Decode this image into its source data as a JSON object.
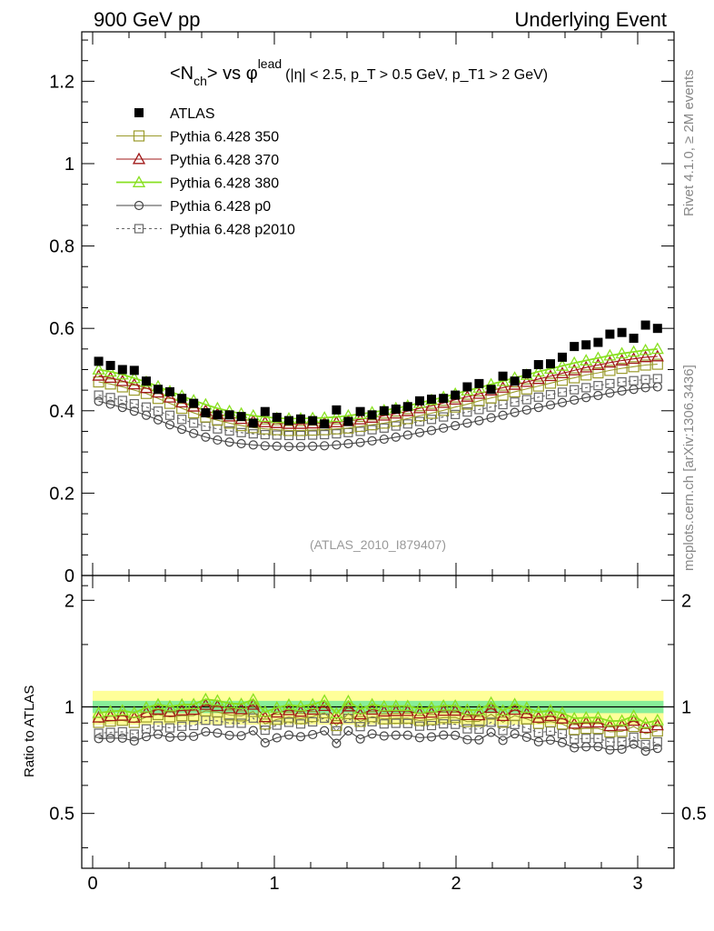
{
  "header": {
    "left": "900 GeV pp",
    "right": "Underlying Event"
  },
  "title": {
    "main_prefix": "<N",
    "main_sub": "ch",
    "main_suffix": "> vs φ",
    "main_sup": "lead",
    "cuts": "(|η| < 2.5, p_T > 0.5 GeV, p_T1 > 2 GeV)"
  },
  "side_labels": {
    "rivet": "Rivet 4.1.0, ≥ 2M events",
    "mcplots": "mcplots.cern.ch [arXiv:1306.3436]"
  },
  "analysis_id": "(ATLAS_2010_I879407)",
  "ratio_ylabel": "Ratio to ATLAS",
  "colors": {
    "atlas": "#000000",
    "p350": "#9a9a2a",
    "p370": "#a01818",
    "p380": "#88e020",
    "p0": "#444444",
    "p2010": "#666666",
    "band_yellow": "#ffff99",
    "band_green": "#88ee99"
  },
  "chart_data": {
    "type": "scatter",
    "xlabel": "",
    "ylabel": "",
    "xlim": [
      -0.06,
      3.2
    ],
    "ylim": [
      0,
      1.32
    ],
    "ratio_ylim": [
      0.35,
      2.35
    ],
    "main_yticks": [
      0,
      0.2,
      0.4,
      0.6,
      0.8,
      1,
      1.2
    ],
    "xticks": [
      0,
      1,
      2,
      3
    ],
    "ratio_yticks": [
      0.5,
      1,
      2
    ],
    "legend": {
      "position": "top-left",
      "entries": [
        "ATLAS",
        "Pythia 6.428 350",
        "Pythia 6.428 370",
        "Pythia 6.428 380",
        "Pythia 6.428 p0",
        "Pythia 6.428 p2010"
      ]
    },
    "x": [
      0.033,
      0.098,
      0.164,
      0.229,
      0.295,
      0.36,
      0.425,
      0.491,
      0.556,
      0.622,
      0.687,
      0.753,
      0.818,
      0.884,
      0.949,
      1.014,
      1.08,
      1.145,
      1.211,
      1.276,
      1.342,
      1.407,
      1.473,
      1.538,
      1.604,
      1.669,
      1.734,
      1.8,
      1.865,
      1.931,
      1.996,
      2.062,
      2.127,
      2.193,
      2.258,
      2.323,
      2.389,
      2.454,
      2.52,
      2.585,
      2.651,
      2.716,
      2.782,
      2.847,
      2.913,
      2.978,
      3.043,
      3.109
    ],
    "series": [
      {
        "name": "ATLAS",
        "marker": "filled-square",
        "values": [
          0.52,
          0.51,
          0.5,
          0.498,
          0.472,
          0.452,
          0.446,
          0.43,
          0.418,
          0.395,
          0.39,
          0.39,
          0.386,
          0.37,
          0.398,
          0.384,
          0.376,
          0.38,
          0.376,
          0.368,
          0.402,
          0.374,
          0.398,
          0.39,
          0.4,
          0.404,
          0.41,
          0.424,
          0.428,
          0.43,
          0.438,
          0.458,
          0.466,
          0.452,
          0.484,
          0.472,
          0.49,
          0.512,
          0.514,
          0.53,
          0.556,
          0.56,
          0.566,
          0.586,
          0.59,
          0.576,
          0.608,
          0.6
        ]
      },
      {
        "name": "Pythia 6.428 350",
        "marker": "open-square",
        "values": [
          0.47,
          0.465,
          0.458,
          0.45,
          0.442,
          0.43,
          0.418,
          0.406,
          0.395,
          0.385,
          0.377,
          0.37,
          0.364,
          0.359,
          0.356,
          0.354,
          0.352,
          0.352,
          0.353,
          0.354,
          0.356,
          0.358,
          0.362,
          0.366,
          0.37,
          0.375,
          0.381,
          0.388,
          0.394,
          0.401,
          0.409,
          0.416,
          0.424,
          0.431,
          0.438,
          0.446,
          0.453,
          0.46,
          0.467,
          0.474,
          0.48,
          0.487,
          0.492,
          0.498,
          0.503,
          0.507,
          0.511,
          0.513
        ]
      },
      {
        "name": "Pythia 6.428 370",
        "marker": "open-triangle",
        "values": [
          0.485,
          0.48,
          0.472,
          0.464,
          0.455,
          0.444,
          0.432,
          0.42,
          0.41,
          0.4,
          0.392,
          0.386,
          0.38,
          0.375,
          0.372,
          0.37,
          0.368,
          0.368,
          0.369,
          0.37,
          0.372,
          0.375,
          0.379,
          0.383,
          0.388,
          0.393,
          0.399,
          0.406,
          0.412,
          0.419,
          0.427,
          0.434,
          0.441,
          0.449,
          0.456,
          0.463,
          0.47,
          0.477,
          0.484,
          0.491,
          0.498,
          0.505,
          0.511,
          0.517,
          0.522,
          0.526,
          0.53,
          0.532
        ]
      },
      {
        "name": "Pythia 6.428 380",
        "marker": "open-triangle",
        "values": [
          0.5,
          0.495,
          0.488,
          0.479,
          0.47,
          0.459,
          0.447,
          0.436,
          0.425,
          0.415,
          0.406,
          0.399,
          0.393,
          0.388,
          0.385,
          0.382,
          0.381,
          0.381,
          0.382,
          0.383,
          0.385,
          0.388,
          0.392,
          0.396,
          0.401,
          0.406,
          0.412,
          0.419,
          0.426,
          0.433,
          0.441,
          0.449,
          0.456,
          0.464,
          0.472,
          0.48,
          0.487,
          0.495,
          0.502,
          0.509,
          0.516,
          0.522,
          0.528,
          0.534,
          0.539,
          0.543,
          0.547,
          0.55
        ]
      },
      {
        "name": "Pythia 6.428 p0",
        "marker": "open-circle",
        "values": [
          0.423,
          0.416,
          0.408,
          0.399,
          0.389,
          0.378,
          0.366,
          0.355,
          0.345,
          0.336,
          0.329,
          0.324,
          0.32,
          0.317,
          0.315,
          0.314,
          0.313,
          0.313,
          0.314,
          0.315,
          0.317,
          0.32,
          0.323,
          0.327,
          0.331,
          0.336,
          0.341,
          0.347,
          0.352,
          0.358,
          0.364,
          0.37,
          0.376,
          0.383,
          0.389,
          0.396,
          0.402,
          0.408,
          0.414,
          0.42,
          0.426,
          0.432,
          0.437,
          0.443,
          0.448,
          0.452,
          0.456,
          0.458
        ]
      },
      {
        "name": "Pythia 6.428 p2010",
        "marker": "open-square-dashed",
        "values": [
          0.438,
          0.432,
          0.425,
          0.417,
          0.409,
          0.399,
          0.389,
          0.379,
          0.37,
          0.362,
          0.356,
          0.351,
          0.347,
          0.344,
          0.342,
          0.341,
          0.34,
          0.34,
          0.341,
          0.342,
          0.344,
          0.347,
          0.35,
          0.354,
          0.358,
          0.363,
          0.368,
          0.374,
          0.379,
          0.385,
          0.391,
          0.397,
          0.403,
          0.409,
          0.415,
          0.421,
          0.427,
          0.433,
          0.439,
          0.445,
          0.451,
          0.456,
          0.461,
          0.466,
          0.47,
          0.473,
          0.476,
          0.478
        ]
      }
    ],
    "ratio_bands": {
      "yellow": [
        0.89,
        1.11
      ],
      "green": [
        0.96,
        1.04
      ]
    }
  }
}
